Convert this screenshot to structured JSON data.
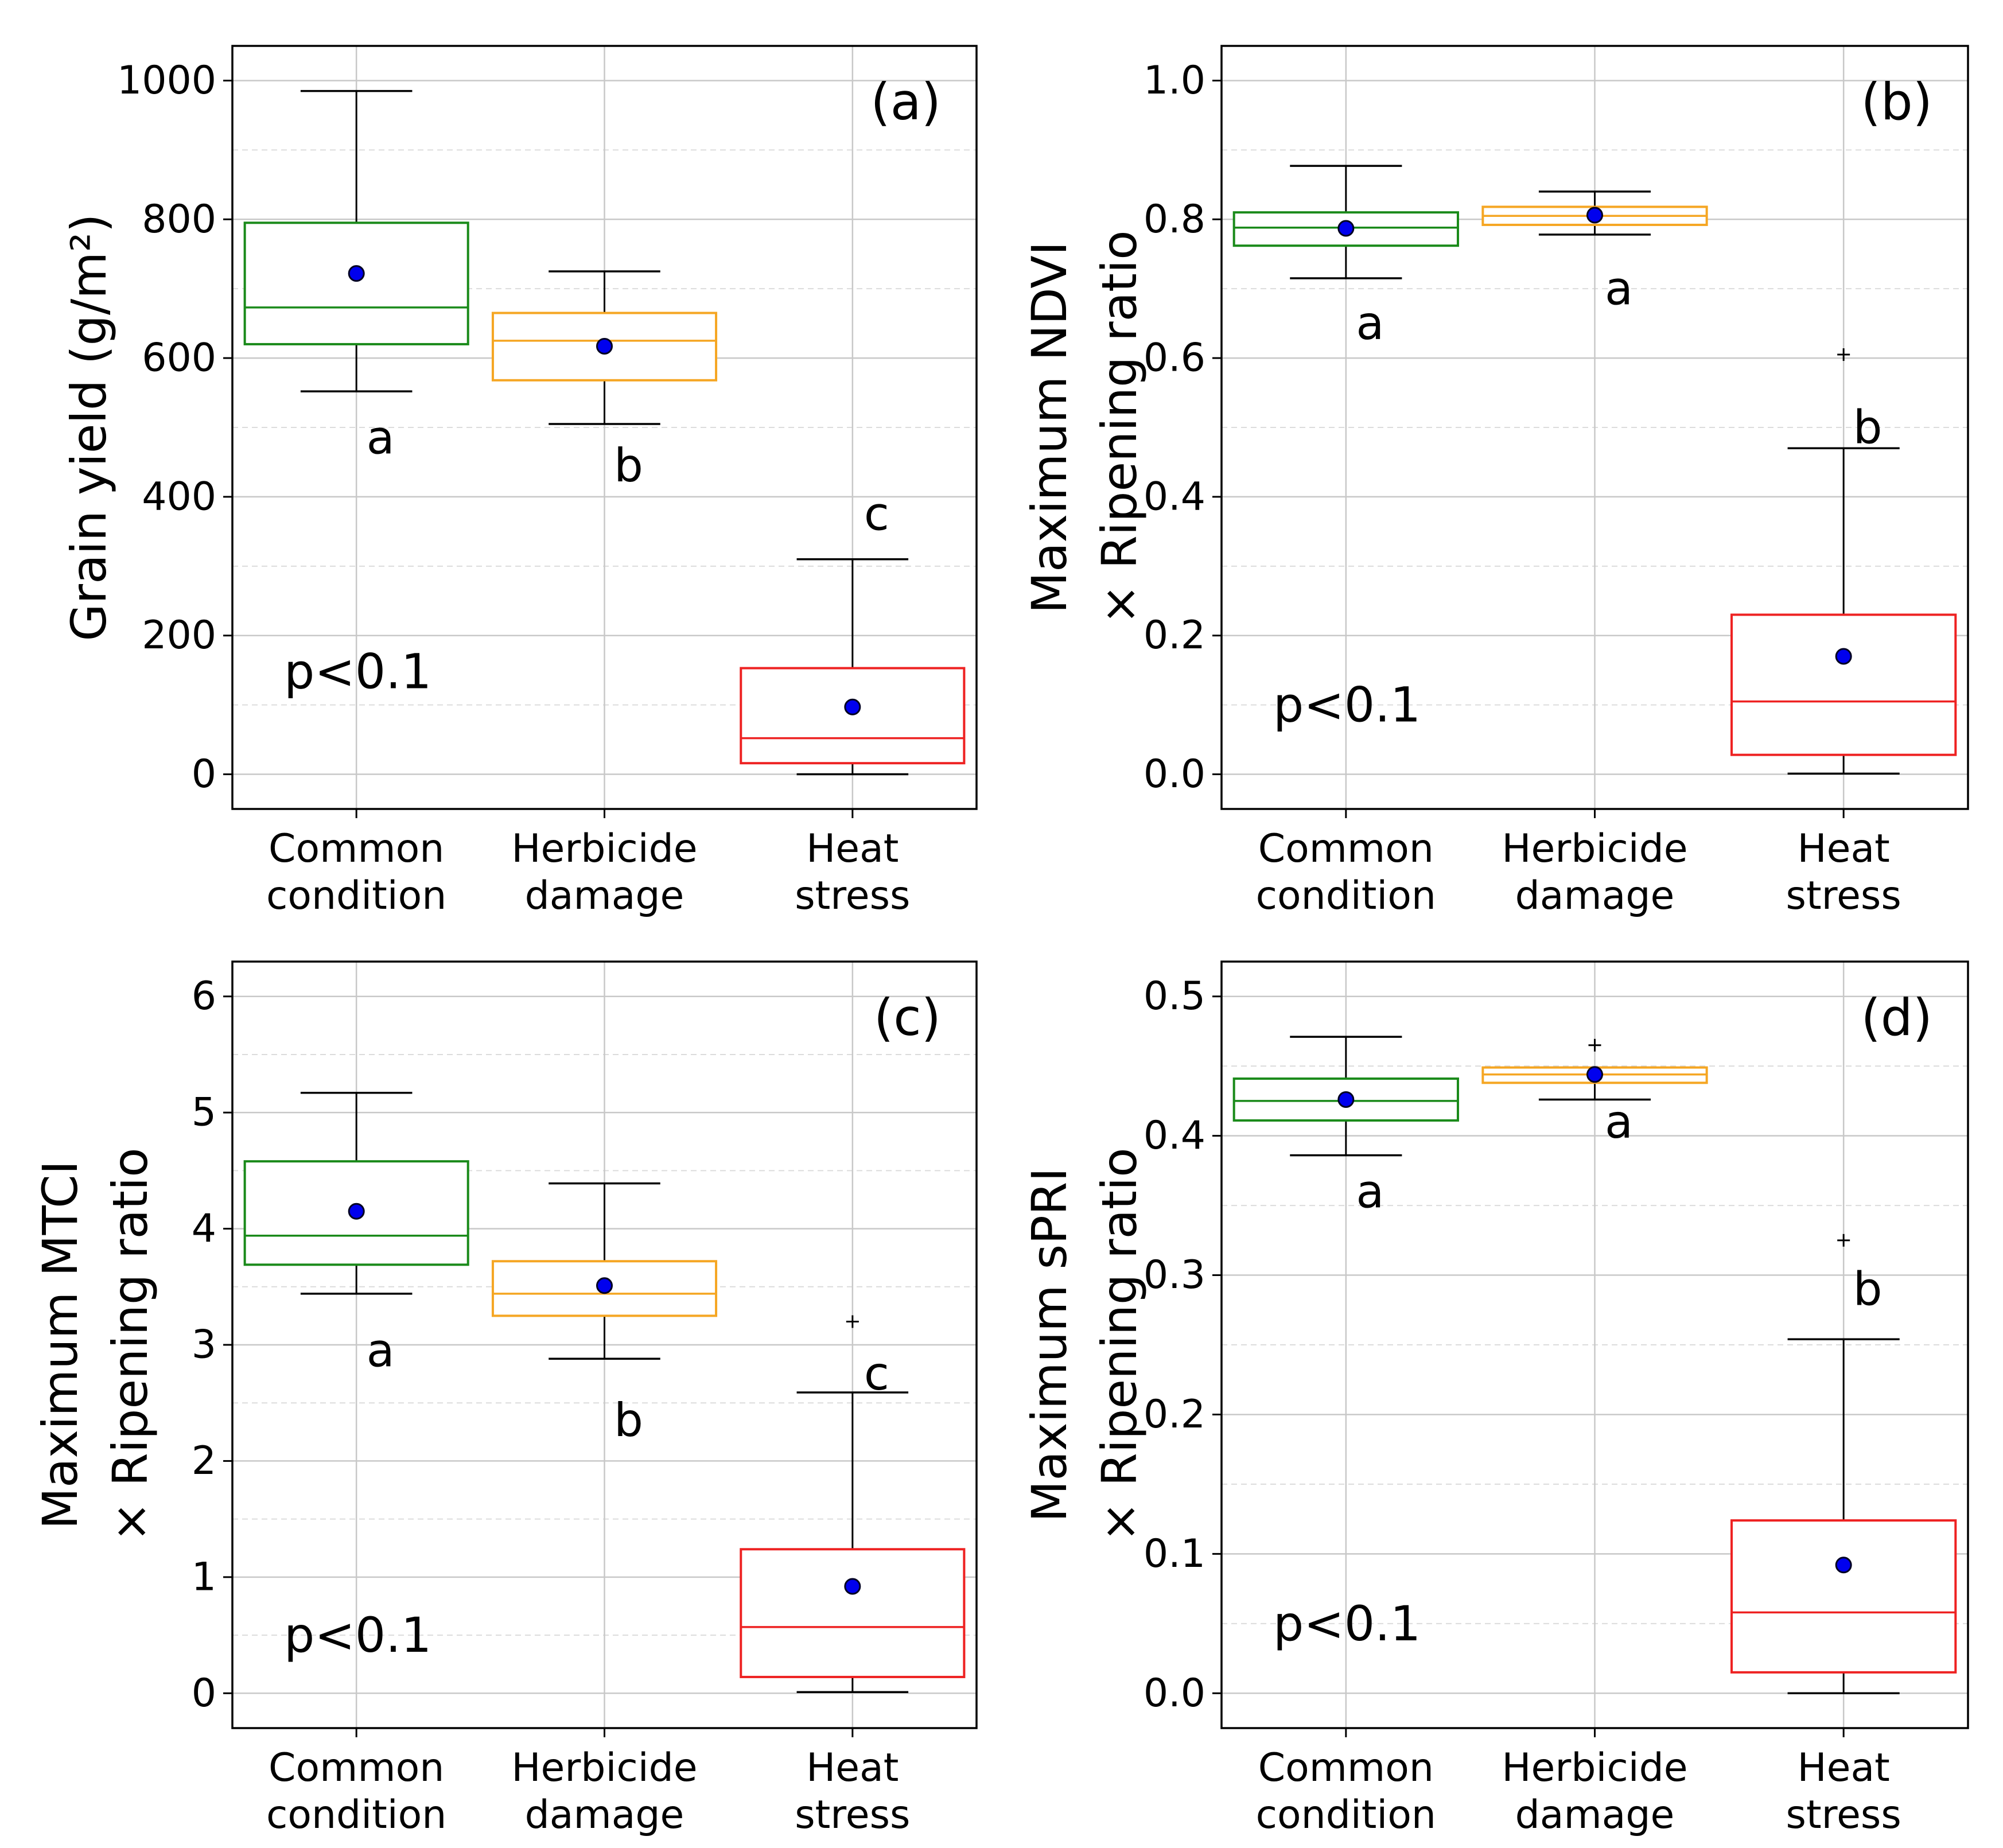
{
  "chart_data": [
    {
      "type": "box",
      "panel_label": "(a)",
      "ylabel_lines": [
        "Grain yield (g/m²)"
      ],
      "ylim": [
        -50,
        1050
      ],
      "yticks": [
        0,
        200,
        400,
        600,
        800,
        1000
      ],
      "ytick_labels": [
        "0",
        "200",
        "400",
        "600",
        "800",
        "1000"
      ],
      "minor_gridlines": [
        100,
        300,
        500,
        700,
        900
      ],
      "categories": [
        [
          "Common",
          "condition"
        ],
        [
          "Herbicide",
          "damage"
        ],
        [
          "Heat",
          "stress"
        ]
      ],
      "boxes": [
        {
          "color": "#1a8a1a",
          "whislo": 552,
          "q1": 620,
          "med": 673,
          "q3": 795,
          "whishi": 985,
          "mean": 722,
          "fliers": []
        },
        {
          "color": "#f5a623",
          "whislo": 505,
          "q1": 568,
          "med": 625,
          "q3": 665,
          "whishi": 725,
          "mean": 617,
          "fliers": []
        },
        {
          "color": "#ee2222",
          "whislo": 0,
          "q1": 16,
          "med": 52,
          "q3": 153,
          "whishi": 310,
          "mean": 97,
          "fliers": []
        }
      ],
      "significance_letters": [
        {
          "text": "a",
          "value": 485
        },
        {
          "text": "b",
          "value": 445
        },
        {
          "text": "c",
          "value": 375
        }
      ],
      "p_value": "p<0.1",
      "p_value_y": 148
    },
    {
      "type": "box",
      "panel_label": "(b)",
      "ylabel_lines": [
        "Maximum NDVI",
        "× Ripening ratio"
      ],
      "ylim": [
        -0.05,
        1.05
      ],
      "yticks": [
        0.0,
        0.2,
        0.4,
        0.6,
        0.8,
        1.0
      ],
      "ytick_labels": [
        "0.0",
        "0.2",
        "0.4",
        "0.6",
        "0.8",
        "1.0"
      ],
      "minor_gridlines": [
        0.1,
        0.3,
        0.5,
        0.7,
        0.9
      ],
      "categories": [
        [
          "Common",
          "condition"
        ],
        [
          "Herbicide",
          "damage"
        ],
        [
          "Heat",
          "stress"
        ]
      ],
      "boxes": [
        {
          "color": "#1a8a1a",
          "whislo": 0.715,
          "q1": 0.762,
          "med": 0.788,
          "q3": 0.81,
          "whishi": 0.877,
          "mean": 0.787,
          "fliers": []
        },
        {
          "color": "#f5a623",
          "whislo": 0.778,
          "q1": 0.792,
          "med": 0.805,
          "q3": 0.818,
          "whishi": 0.84,
          "mean": 0.806,
          "fliers": []
        },
        {
          "color": "#ee2222",
          "whislo": 0.001,
          "q1": 0.028,
          "med": 0.105,
          "q3": 0.23,
          "whishi": 0.47,
          "mean": 0.17,
          "fliers": [
            0.605
          ]
        }
      ],
      "significance_letters": [
        {
          "text": "a",
          "value": 0.65
        },
        {
          "text": "a",
          "value": 0.7
        },
        {
          "text": "b",
          "value": 0.5
        }
      ],
      "p_value": "p<0.1",
      "p_value_y": 0.1
    },
    {
      "type": "box",
      "panel_label": "(c)",
      "ylabel_lines": [
        "Maximum MTCI",
        "× Ripening ratio"
      ],
      "ylim": [
        -0.3,
        6.3
      ],
      "yticks": [
        0,
        1,
        2,
        3,
        4,
        5,
        6
      ],
      "ytick_labels": [
        "0",
        "1",
        "2",
        "3",
        "4",
        "5",
        "6"
      ],
      "minor_gridlines": [
        0.5,
        1.5,
        2.5,
        3.5,
        4.5,
        5.5
      ],
      "categories": [
        [
          "Common",
          "condition"
        ],
        [
          "Herbicide",
          "damage"
        ],
        [
          "Heat",
          "stress"
        ]
      ],
      "boxes": [
        {
          "color": "#1a8a1a",
          "whislo": 3.44,
          "q1": 3.69,
          "med": 3.94,
          "q3": 4.58,
          "whishi": 5.17,
          "mean": 4.15,
          "fliers": []
        },
        {
          "color": "#f5a623",
          "whislo": 2.88,
          "q1": 3.25,
          "med": 3.44,
          "q3": 3.72,
          "whishi": 4.39,
          "mean": 3.51,
          "fliers": []
        },
        {
          "color": "#ee2222",
          "whislo": 0.01,
          "q1": 0.14,
          "med": 0.57,
          "q3": 1.24,
          "whishi": 2.59,
          "mean": 0.92,
          "fliers": [
            3.2
          ]
        }
      ],
      "significance_letters": [
        {
          "text": "a",
          "value": 2.95
        },
        {
          "text": "b",
          "value": 2.35
        },
        {
          "text": "c",
          "value": 2.75
        }
      ],
      "p_value": "p<0.1",
      "p_value_y": 0.5
    },
    {
      "type": "box",
      "panel_label": "(d)",
      "ylabel_lines": [
        "Maximum sPRI",
        "× Ripening ratio"
      ],
      "ylim": [
        -0.025,
        0.525
      ],
      "yticks": [
        0.0,
        0.1,
        0.2,
        0.3,
        0.4,
        0.5
      ],
      "ytick_labels": [
        "0.0",
        "0.1",
        "0.2",
        "0.3",
        "0.4",
        "0.5"
      ],
      "minor_gridlines": [
        0.05,
        0.15,
        0.25,
        0.35,
        0.45
      ],
      "categories": [
        [
          "Common",
          "condition"
        ],
        [
          "Herbicide",
          "damage"
        ],
        [
          "Heat",
          "stress"
        ]
      ],
      "boxes": [
        {
          "color": "#1a8a1a",
          "whislo": 0.386,
          "q1": 0.411,
          "med": 0.425,
          "q3": 0.441,
          "whishi": 0.471,
          "mean": 0.426,
          "fliers": []
        },
        {
          "color": "#f5a623",
          "whislo": 0.426,
          "q1": 0.438,
          "med": 0.444,
          "q3": 0.449,
          "whishi": 0.449,
          "mean": 0.444,
          "fliers": [
            0.465
          ]
        },
        {
          "color": "#ee2222",
          "whislo": 0.0,
          "q1": 0.015,
          "med": 0.058,
          "q3": 0.124,
          "whishi": 0.254,
          "mean": 0.092,
          "fliers": [
            0.325
          ]
        }
      ],
      "significance_letters": [
        {
          "text": "a",
          "value": 0.36
        },
        {
          "text": "a",
          "value": 0.41
        },
        {
          "text": "b",
          "value": 0.29
        }
      ],
      "p_value": "p<0.1",
      "p_value_y": 0.05
    }
  ],
  "colors": {
    "axis": "#000000",
    "grid_major": "#c8c8c8",
    "grid_minor": "#dcdcdc",
    "mean_marker_fill": "#0000ee",
    "mean_marker_edge": "#000022"
  }
}
